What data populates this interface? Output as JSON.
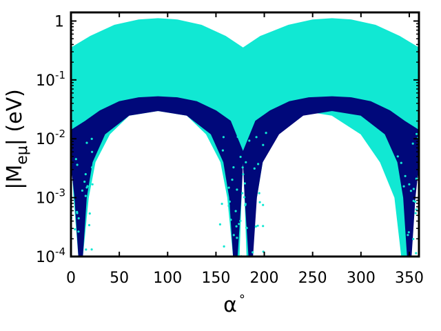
{
  "chart_data": {
    "type": "scatter",
    "title": "",
    "xlabel": "α",
    "xlabel_superscript": "°",
    "ylabel": "|M",
    "ylabel_subscript": "eμ",
    "ylabel_suffix": "| (eV)",
    "xlim": [
      0,
      360
    ],
    "ylim": [
      0.0001,
      1.4
    ],
    "yscale": "log",
    "grid": false,
    "legend": "none",
    "x_ticks": [
      {
        "value": 0,
        "label": "0"
      },
      {
        "value": 50,
        "label": "50"
      },
      {
        "value": 100,
        "label": "100"
      },
      {
        "value": 150,
        "label": "150"
      },
      {
        "value": 200,
        "label": "200"
      },
      {
        "value": 250,
        "label": "250"
      },
      {
        "value": 300,
        "label": "300"
      },
      {
        "value": 350,
        "label": "350"
      }
    ],
    "y_ticks": [
      {
        "value": 1,
        "base": "1",
        "exp": ""
      },
      {
        "value": 0.1,
        "base": "10",
        "exp": "-1"
      },
      {
        "value": 0.01,
        "base": "10",
        "exp": "-2"
      },
      {
        "value": 0.001,
        "base": "10",
        "exp": "-3"
      },
      {
        "value": 0.0001,
        "base": "10",
        "exp": "-4"
      }
    ],
    "series": [
      {
        "color": "#11e8d3",
        "upper_envelope": {
          "x": [
            0,
            20,
            45,
            70,
            90,
            110,
            135,
            160,
            178,
            196,
            225,
            250,
            270,
            290,
            315,
            340,
            360
          ],
          "y": [
            0.35,
            0.55,
            0.85,
            1.05,
            1.1,
            1.05,
            0.85,
            0.55,
            0.35,
            0.55,
            0.85,
            1.05,
            1.1,
            1.05,
            0.85,
            0.55,
            0.35
          ]
        },
        "lower_envelope": {
          "x": [
            0,
            3,
            8,
            12,
            18,
            25,
            40,
            60,
            90,
            120,
            140,
            155,
            162,
            168,
            174,
            178,
            182,
            186,
            192,
            198,
            205,
            220,
            240,
            270,
            300,
            320,
            335,
            342,
            348,
            354,
            358,
            360
          ],
          "y": [
            0.008,
            0.001,
            0.0001,
            0.0001,
            0.001,
            0.004,
            0.012,
            0.025,
            0.03,
            0.025,
            0.012,
            0.004,
            0.001,
            0.0001,
            0.0001,
            0.008,
            0.0001,
            0.0001,
            0.001,
            0.004,
            0.012,
            0.025,
            0.03,
            0.025,
            0.012,
            0.004,
            0.001,
            0.0001,
            0.0001,
            0.001,
            0.008,
            0.008
          ]
        }
      },
      {
        "color": "#00087a",
        "upper_envelope": {
          "x": [
            0,
            15,
            30,
            50,
            70,
            90,
            110,
            130,
            150,
            165,
            178,
            191,
            206,
            226,
            246,
            270,
            290,
            310,
            330,
            345,
            360
          ],
          "y": [
            0.014,
            0.02,
            0.03,
            0.043,
            0.05,
            0.052,
            0.05,
            0.043,
            0.03,
            0.02,
            0.006,
            0.02,
            0.03,
            0.043,
            0.05,
            0.052,
            0.05,
            0.043,
            0.03,
            0.02,
            0.014
          ]
        },
        "lower_envelope": {
          "x": [
            0,
            4,
            8,
            12,
            16,
            22,
            35,
            60,
            90,
            120,
            145,
            158,
            164,
            168,
            172,
            176,
            178,
            180,
            184,
            188,
            192,
            198,
            215,
            240,
            270,
            300,
            325,
            338,
            344,
            348,
            352,
            356,
            360
          ],
          "y": [
            0.004,
            0.001,
            0.0001,
            0.0001,
            0.001,
            0.004,
            0.012,
            0.025,
            0.03,
            0.025,
            0.012,
            0.004,
            0.001,
            0.0001,
            0.0001,
            0.001,
            0.005,
            0.001,
            0.0001,
            0.0001,
            0.001,
            0.004,
            0.012,
            0.025,
            0.03,
            0.025,
            0.012,
            0.004,
            0.001,
            0.0001,
            0.0001,
            0.001,
            0.004
          ]
        }
      }
    ]
  }
}
